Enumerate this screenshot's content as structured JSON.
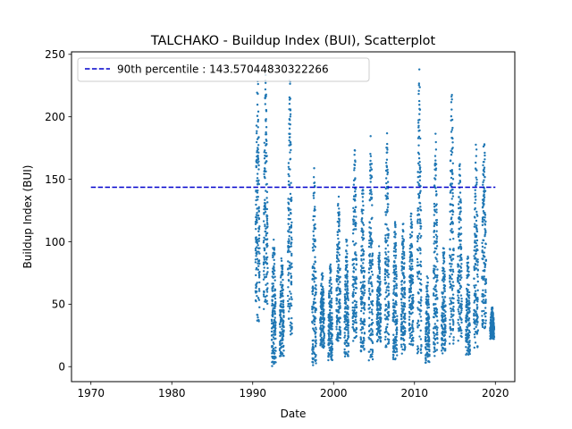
{
  "chart_data": {
    "type": "scatter",
    "title": "TALCHAKO - Buildup Index (BUI), Scatterplot",
    "xlabel": "Date",
    "ylabel": "Buildup Index (BUI)",
    "xlim": [
      1967.6,
      2022.4
    ],
    "ylim": [
      -12,
      252
    ],
    "x_ticks": [
      1970,
      1980,
      1990,
      2000,
      2010,
      2020
    ],
    "y_ticks": [
      0,
      50,
      100,
      150,
      200,
      250
    ],
    "grid": false,
    "legend": {
      "placement": "top-left",
      "entries": [
        "90th percentile : 143.57044830322266"
      ]
    },
    "reference_line": {
      "name": "90th percentile : 143.57044830322266",
      "y": 143.57,
      "x": [
        1970,
        2020
      ],
      "style": "dashed",
      "color": "#0000cc"
    },
    "series_color": "#1f77b4",
    "seasons": [
      {
        "year": 1990,
        "ymin": 35,
        "ymax": 238
      },
      {
        "year": 1991,
        "ymin": 45,
        "ymax": 235
      },
      {
        "year": 1992,
        "ymin": 0,
        "ymax": 110
      },
      {
        "year": 1993,
        "ymin": 8,
        "ymax": 92
      },
      {
        "year": 1994,
        "ymin": 25,
        "ymax": 238
      },
      {
        "year": 1997,
        "ymin": 1,
        "ymax": 162
      },
      {
        "year": 1998,
        "ymin": 15,
        "ymax": 80
      },
      {
        "year": 1999,
        "ymin": 5,
        "ymax": 85
      },
      {
        "year": 2000,
        "ymin": 18,
        "ymax": 140
      },
      {
        "year": 2001,
        "ymin": 8,
        "ymax": 105
      },
      {
        "year": 2002,
        "ymin": 20,
        "ymax": 178
      },
      {
        "year": 2003,
        "ymin": 12,
        "ymax": 150
      },
      {
        "year": 2004,
        "ymin": 3,
        "ymax": 190
      },
      {
        "year": 2005,
        "ymin": 20,
        "ymax": 98
      },
      {
        "year": 2006,
        "ymin": 15,
        "ymax": 187
      },
      {
        "year": 2007,
        "ymin": 5,
        "ymax": 118
      },
      {
        "year": 2008,
        "ymin": 10,
        "ymax": 118
      },
      {
        "year": 2009,
        "ymin": 15,
        "ymax": 128
      },
      {
        "year": 2010,
        "ymin": 10,
        "ymax": 238
      },
      {
        "year": 2011,
        "ymin": 3,
        "ymax": 75
      },
      {
        "year": 2012,
        "ymin": 8,
        "ymax": 187
      },
      {
        "year": 2013,
        "ymin": 10,
        "ymax": 100
      },
      {
        "year": 2014,
        "ymin": 18,
        "ymax": 225
      },
      {
        "year": 2015,
        "ymin": 20,
        "ymax": 168
      },
      {
        "year": 2016,
        "ymin": 8,
        "ymax": 92
      },
      {
        "year": 2017,
        "ymin": 15,
        "ymax": 187
      },
      {
        "year": 2018,
        "ymin": 30,
        "ymax": 192
      },
      {
        "year": 2019,
        "ymin": 22,
        "ymax": 48
      }
    ]
  }
}
